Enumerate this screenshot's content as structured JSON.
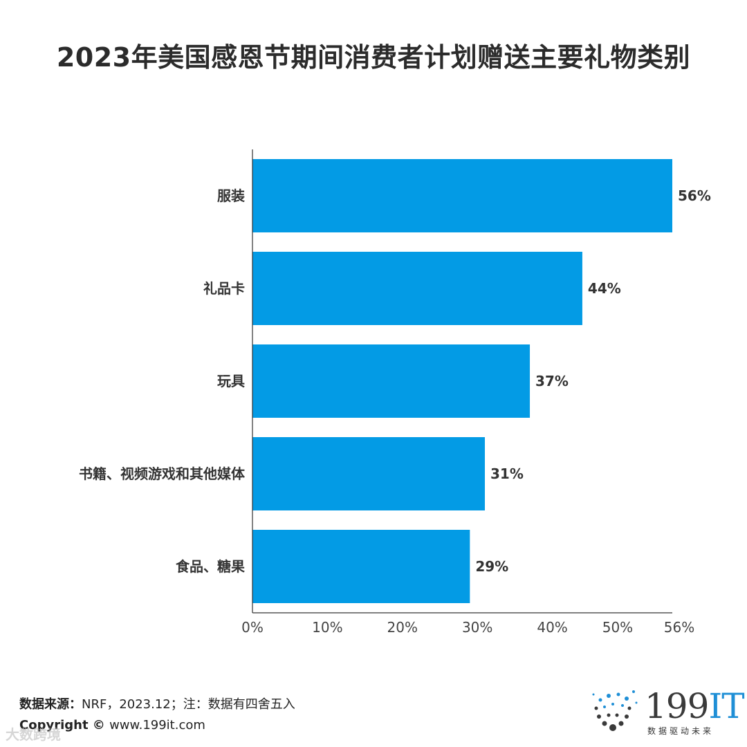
{
  "chart_data": {
    "type": "bar",
    "orientation": "horizontal",
    "title": "2023年美国感恩节期间消费者计划赠送主要礼物类别",
    "categories": [
      "服装",
      "礼品卡",
      "玩具",
      "书籍、视频游戏和其他媒体",
      "食品、糖果"
    ],
    "values": [
      56,
      44,
      37,
      31,
      29
    ],
    "value_labels": [
      "56%",
      "44%",
      "37%",
      "31%",
      "29%"
    ],
    "xlim": [
      0,
      56
    ],
    "x_ticks": [
      0,
      10,
      20,
      30,
      40,
      50,
      56
    ],
    "x_tick_labels": [
      "0%",
      "10%",
      "20%",
      "30%",
      "40%",
      "50%",
      "56%"
    ],
    "grid": false,
    "bar_color": "#039be5"
  },
  "footer": {
    "source_label": "数据来源：",
    "source_text": "NRF，2023.12；注：数据有四舍五入",
    "copyright_label": "Copyright © ",
    "copyright_text": "www.199it.com"
  },
  "watermark": "大数跨境",
  "logo": {
    "main": "199",
    "accent": "IT",
    "tagline": "数据驱动未来"
  },
  "colors": {
    "bar": "#039be5",
    "logo_accent": "#1f8fd6"
  }
}
